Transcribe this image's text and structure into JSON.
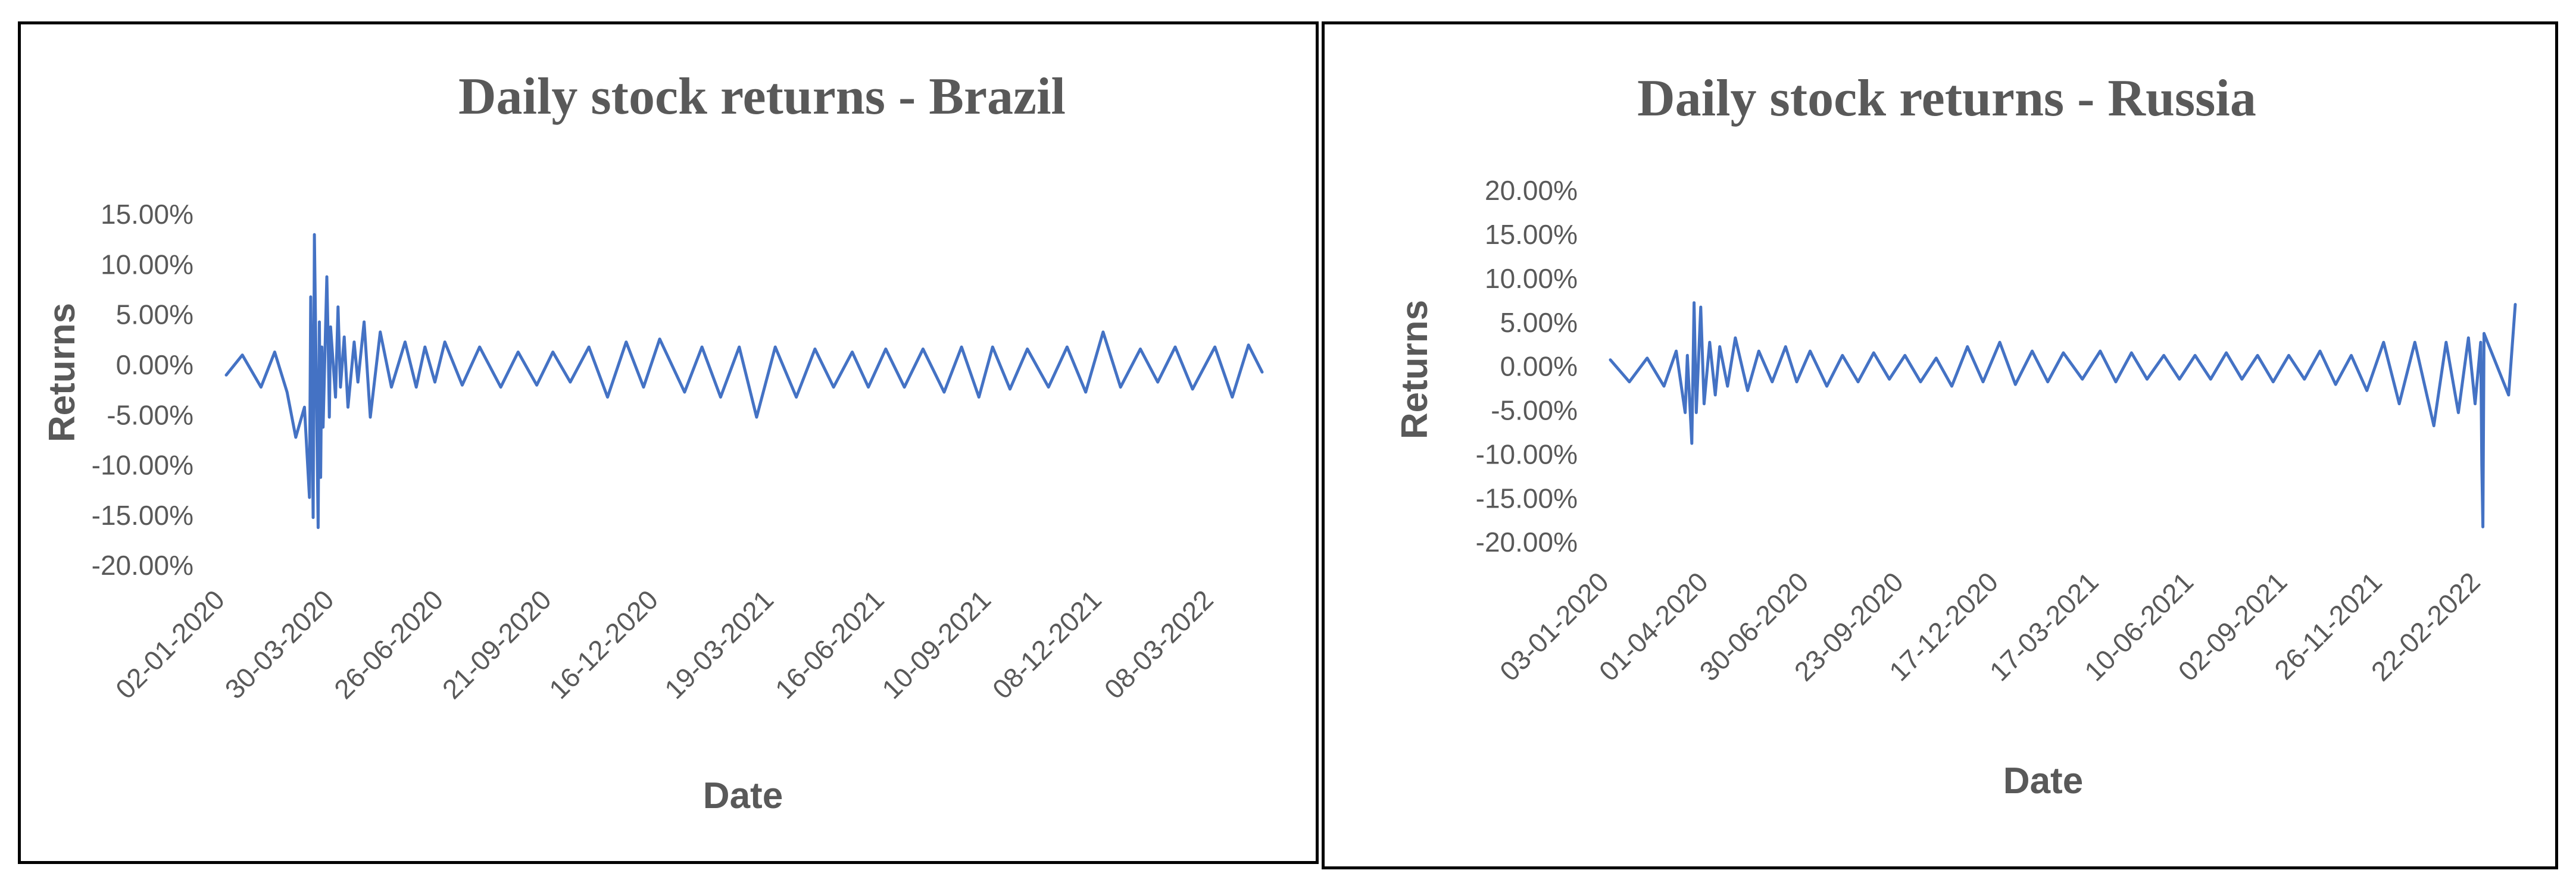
{
  "colors": {
    "series": "#4472C4",
    "text": "#595959",
    "border": "#000000"
  },
  "chart_data": [
    {
      "type": "line",
      "title": "Daily stock returns - Brazil",
      "xlabel": "Date",
      "ylabel": "Returns",
      "ylim": [
        -0.2,
        0.15
      ],
      "y_ticks": [
        "15.00%",
        "10.00%",
        "5.00%",
        "0.00%",
        "-5.00%",
        "-10.00%",
        "-15.00%",
        "-20.00%"
      ],
      "x_ticks": [
        "02-01-2020",
        "30-03-2020",
        "26-06-2020",
        "21-09-2020",
        "16-12-2020",
        "19-03-2021",
        "16-06-2021",
        "10-09-2021",
        "08-12-2021",
        "08-03-2022"
      ],
      "x_range": [
        "02-01-2020",
        "15-04-2022"
      ],
      "grid": false,
      "legend": "none",
      "series": [
        {
          "x": [
            "02-01-2020",
            "15-01-2020",
            "30-01-2020",
            "10-02-2020",
            "20-02-2020",
            "27-02-2020",
            "05-03-2020",
            "09-03-2020",
            "10-03-2020",
            "12-03-2020",
            "13-03-2020",
            "16-03-2020",
            "17-03-2020",
            "18-03-2020",
            "19-03-2020",
            "20-03-2020",
            "23-03-2020",
            "24-03-2020",
            "25-03-2020",
            "26-03-2020",
            "30-03-2020",
            "01-04-2020",
            "03-04-2020",
            "06-04-2020",
            "09-04-2020",
            "14-04-2020",
            "17-04-2020",
            "22-04-2020",
            "27-04-2020",
            "05-05-2020",
            "14-05-2020",
            "25-05-2020",
            "03-06-2020",
            "10-06-2020",
            "18-06-2020",
            "26-06-2020",
            "10-07-2020",
            "24-07-2020",
            "10-08-2020",
            "24-08-2020",
            "08-09-2020",
            "21-09-2020",
            "05-10-2020",
            "20-10-2020",
            "04-11-2020",
            "19-11-2020",
            "03-12-2020",
            "16-12-2020",
            "05-01-2021",
            "19-01-2021",
            "03-02-2021",
            "18-02-2021",
            "04-03-2021",
            "19-03-2021",
            "05-04-2021",
            "20-04-2021",
            "05-05-2021",
            "20-05-2021",
            "02-06-2021",
            "16-06-2021",
            "01-07-2021",
            "16-07-2021",
            "02-08-2021",
            "16-08-2021",
            "30-08-2021",
            "10-09-2021",
            "24-09-2021",
            "08-10-2021",
            "25-10-2021",
            "09-11-2021",
            "24-11-2021",
            "08-12-2021",
            "22-12-2021",
            "07-01-2022",
            "21-01-2022",
            "04-02-2022",
            "18-02-2022",
            "08-03-2022",
            "22-03-2022",
            "04-04-2022",
            "15-04-2022"
          ],
          "values": [
            -0.008,
            0.012,
            -0.02,
            0.015,
            -0.025,
            -0.07,
            -0.04,
            -0.13,
            0.07,
            -0.15,
            0.132,
            -0.16,
            0.045,
            -0.11,
            0.02,
            -0.06,
            0.09,
            0.03,
            -0.05,
            0.04,
            -0.03,
            0.06,
            -0.02,
            0.03,
            -0.04,
            0.025,
            -0.015,
            0.045,
            -0.05,
            0.035,
            -0.02,
            0.025,
            -0.02,
            0.02,
            -0.015,
            0.025,
            -0.018,
            0.02,
            -0.02,
            0.015,
            -0.018,
            0.015,
            -0.015,
            0.02,
            -0.03,
            0.025,
            -0.02,
            0.028,
            -0.025,
            0.02,
            -0.03,
            0.02,
            -0.05,
            0.02,
            -0.03,
            0.018,
            -0.02,
            0.015,
            -0.02,
            0.018,
            -0.02,
            0.018,
            -0.025,
            0.02,
            -0.03,
            0.02,
            -0.022,
            0.018,
            -0.02,
            0.02,
            -0.025,
            0.035,
            -0.02,
            0.018,
            -0.015,
            0.02,
            -0.022,
            0.02,
            -0.03,
            0.022,
            -0.005
          ]
        }
      ]
    },
    {
      "type": "line",
      "title": "Daily stock returns - Russia",
      "xlabel": "Date",
      "ylabel": "Returns",
      "ylim": [
        -0.2,
        0.2
      ],
      "y_ticks": [
        "20.00%",
        "15.00%",
        "10.00%",
        "5.00%",
        "0.00%",
        "-5.00%",
        "-10.00%",
        "-15.00%",
        "-20.00%"
      ],
      "x_ticks": [
        "03-01-2020",
        "01-04-2020",
        "30-06-2020",
        "23-09-2020",
        "17-12-2020",
        "17-03-2021",
        "10-06-2021",
        "02-09-2021",
        "26-11-2021",
        "22-02-2022"
      ],
      "x_range": [
        "03-01-2020",
        "24-03-2022"
      ],
      "grid": false,
      "legend": "none",
      "series": [
        {
          "x": [
            "03-01-2020",
            "20-01-2020",
            "05-02-2020",
            "20-02-2020",
            "02-03-2020",
            "10-03-2020",
            "12-03-2020",
            "16-03-2020",
            "18-03-2020",
            "20-03-2020",
            "24-03-2020",
            "27-03-2020",
            "01-04-2020",
            "06-04-2020",
            "10-04-2020",
            "17-04-2020",
            "24-04-2020",
            "05-05-2020",
            "15-05-2020",
            "27-05-2020",
            "08-06-2020",
            "18-06-2020",
            "30-06-2020",
            "15-07-2020",
            "29-07-2020",
            "12-08-2020",
            "26-08-2020",
            "09-09-2020",
            "23-09-2020",
            "07-10-2020",
            "21-10-2020",
            "04-11-2020",
            "18-11-2020",
            "02-12-2020",
            "17-12-2020",
            "31-12-2020",
            "15-01-2021",
            "29-01-2021",
            "12-02-2021",
            "01-03-2021",
            "17-03-2021",
            "31-03-2021",
            "14-04-2021",
            "28-04-2021",
            "13-05-2021",
            "27-05-2021",
            "10-06-2021",
            "24-06-2021",
            "08-07-2021",
            "22-07-2021",
            "05-08-2021",
            "19-08-2021",
            "02-09-2021",
            "16-09-2021",
            "30-09-2021",
            "14-10-2021",
            "28-10-2021",
            "11-11-2021",
            "26-11-2021",
            "10-12-2021",
            "24-12-2021",
            "10-01-2022",
            "21-01-2022",
            "01-02-2022",
            "10-02-2022",
            "16-02-2022",
            "21-02-2022",
            "22-02-2022",
            "23-02-2022",
            "24-02-2022",
            "18-03-2022",
            "24-03-2022"
          ],
          "values": [
            0.01,
            -0.015,
            0.012,
            -0.02,
            0.02,
            -0.05,
            0.015,
            -0.085,
            0.075,
            -0.05,
            0.07,
            -0.04,
            0.03,
            -0.03,
            0.025,
            -0.02,
            0.035,
            -0.025,
            0.02,
            -0.015,
            0.025,
            -0.015,
            0.02,
            -0.02,
            0.015,
            -0.015,
            0.018,
            -0.012,
            0.015,
            -0.015,
            0.012,
            -0.02,
            0.025,
            -0.015,
            0.03,
            -0.018,
            0.02,
            -0.015,
            0.018,
            -0.012,
            0.02,
            -0.015,
            0.018,
            -0.012,
            0.015,
            -0.012,
            0.015,
            -0.012,
            0.018,
            -0.012,
            0.015,
            -0.015,
            0.015,
            -0.012,
            0.02,
            -0.018,
            0.015,
            -0.025,
            0.03,
            -0.04,
            0.03,
            -0.065,
            0.03,
            -0.05,
            0.035,
            -0.04,
            0.03,
            -0.11,
            -0.18,
            0.04,
            -0.03,
            0.073
          ]
        }
      ]
    }
  ]
}
